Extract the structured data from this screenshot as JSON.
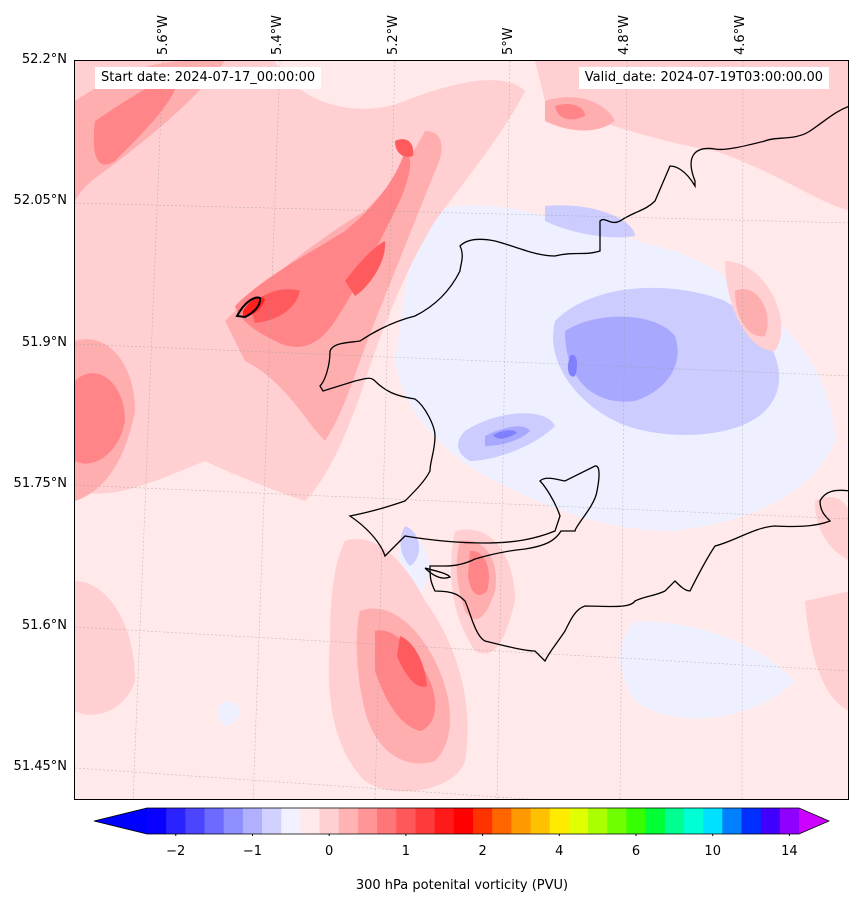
{
  "map": {
    "start_label": "Start date: 2024-07-17_00:00:00",
    "valid_label": "Valid_date: 2024-07-19T03:00:00.00",
    "lon_labels": [
      "5.6°W",
      "5.4°W",
      "5.2°W",
      "5°W",
      "4.8°W",
      "4.6°W"
    ],
    "lat_labels": [
      "52.2°N",
      "52.05°N",
      "51.9°N",
      "51.75°N",
      "51.6°N",
      "51.45°N"
    ]
  },
  "colorbar": {
    "title": "300 hPa potenital vorticity (PVU)",
    "tick_labels": [
      "−2",
      "−1",
      "0",
      "1",
      "2",
      "4",
      "6",
      "10",
      "14"
    ],
    "colors": [
      "#0a00ff",
      "#2a22ff",
      "#4b45ff",
      "#6d6aff",
      "#8e8eff",
      "#b0b0ff",
      "#d1d1ff",
      "#f1f1ff",
      "#ffe9ea",
      "#ffd0d1",
      "#ffb3b4",
      "#ff9596",
      "#ff7679",
      "#ff5858",
      "#ff3a3a",
      "#ff1a1a",
      "#ff0000",
      "#ff3300",
      "#ff6600",
      "#ff9900",
      "#ffc000",
      "#ffeb00",
      "#e0ff00",
      "#aaff00",
      "#70ff00",
      "#35ff00",
      "#00ff35",
      "#00ff90",
      "#00ffd5",
      "#00e0ff",
      "#0080ff",
      "#0030ff",
      "#4000ff",
      "#9000ff"
    ],
    "under_color": "#0000ff",
    "over_color": "#cc00ff"
  }
}
